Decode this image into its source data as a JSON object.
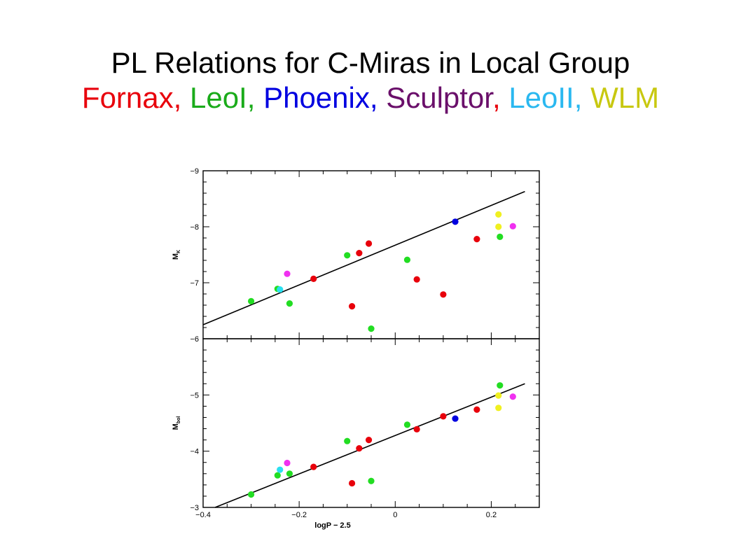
{
  "title_line1": "PL Relations for C-Miras in Local Group",
  "title_line2": [
    {
      "text": "Fornax",
      "color": "#e8000b"
    },
    {
      "text": ", ",
      "color": "#e8000b"
    },
    {
      "text": "LeoI",
      "color": "#1aab1a"
    },
    {
      "text": ", ",
      "color": "#1aab1a"
    },
    {
      "text": "Phoenix",
      "color": "#0000e0"
    },
    {
      "text": ", ",
      "color": "#0000e0"
    },
    {
      "text": "Sculptor",
      "color": "#6a0f6a"
    },
    {
      "text": ", ",
      "color": "#e8000b"
    },
    {
      "text": "LeoII",
      "color": "#2ab8f0"
    },
    {
      "text": ", ",
      "color": "#2ab8f0"
    },
    {
      "text": "WLM",
      "color": "#c8c810"
    }
  ],
  "chart_data": [
    {
      "type": "scatter",
      "panel": "top",
      "ylabel_main": "M",
      "ylabel_sub": "K",
      "xlim": [
        -0.4,
        0.3
      ],
      "ylim": [
        -6,
        -9
      ],
      "yticks": [
        -9,
        -8,
        -7,
        -6
      ],
      "ytick_labels": [
        "−9",
        "−8",
        "−7",
        "−6"
      ],
      "fit_line": {
        "x": [
          -0.4,
          0.27
        ],
        "y": [
          -6.25,
          -8.63
        ]
      },
      "points": [
        {
          "x": -0.3,
          "y": -6.67,
          "color": "#22dd22"
        },
        {
          "x": -0.245,
          "y": -6.89,
          "color": "#22dd22"
        },
        {
          "x": -0.24,
          "y": -6.88,
          "color": "#2ae0f0"
        },
        {
          "x": -0.225,
          "y": -7.16,
          "color": "#f030f0"
        },
        {
          "x": -0.22,
          "y": -6.63,
          "color": "#22dd22"
        },
        {
          "x": -0.17,
          "y": -7.07,
          "color": "#e8000b"
        },
        {
          "x": -0.1,
          "y": -7.49,
          "color": "#22dd22"
        },
        {
          "x": -0.09,
          "y": -6.58,
          "color": "#e8000b"
        },
        {
          "x": -0.075,
          "y": -7.53,
          "color": "#e8000b"
        },
        {
          "x": -0.055,
          "y": -7.7,
          "color": "#e8000b"
        },
        {
          "x": -0.05,
          "y": -6.18,
          "color": "#22dd22"
        },
        {
          "x": 0.025,
          "y": -7.41,
          "color": "#22dd22"
        },
        {
          "x": 0.045,
          "y": -7.06,
          "color": "#e8000b"
        },
        {
          "x": 0.1,
          "y": -6.79,
          "color": "#e8000b"
        },
        {
          "x": 0.125,
          "y": -8.09,
          "color": "#0000e0"
        },
        {
          "x": 0.17,
          "y": -7.78,
          "color": "#e8000b"
        },
        {
          "x": 0.215,
          "y": -8.22,
          "color": "#f0f020"
        },
        {
          "x": 0.215,
          "y": -8.0,
          "color": "#f0f020"
        },
        {
          "x": 0.218,
          "y": -7.82,
          "color": "#22dd22"
        },
        {
          "x": 0.245,
          "y": -8.01,
          "color": "#f030f0"
        }
      ]
    },
    {
      "type": "scatter",
      "panel": "bottom",
      "xlabel": "logP − 2.5",
      "ylabel_main": "M",
      "ylabel_sub": "bol",
      "xlim": [
        -0.4,
        0.3
      ],
      "ylim": [
        -3,
        -6
      ],
      "xticks": [
        -0.4,
        -0.2,
        0,
        0.2
      ],
      "xtick_labels": [
        "−0.4",
        "−0.2",
        "0",
        "0.2"
      ],
      "yticks": [
        -5,
        -4,
        -3
      ],
      "ytick_labels": [
        "−5",
        "−4",
        "−3"
      ],
      "fit_line": {
        "x": [
          -0.375,
          0.27
        ],
        "y": [
          -3.0,
          -5.2
        ]
      },
      "points": [
        {
          "x": -0.3,
          "y": -3.23,
          "color": "#22dd22"
        },
        {
          "x": -0.245,
          "y": -3.57,
          "color": "#22dd22"
        },
        {
          "x": -0.24,
          "y": -3.67,
          "color": "#2ae0f0"
        },
        {
          "x": -0.225,
          "y": -3.79,
          "color": "#f030f0"
        },
        {
          "x": -0.22,
          "y": -3.6,
          "color": "#22dd22"
        },
        {
          "x": -0.17,
          "y": -3.72,
          "color": "#e8000b"
        },
        {
          "x": -0.1,
          "y": -4.18,
          "color": "#22dd22"
        },
        {
          "x": -0.09,
          "y": -3.43,
          "color": "#e8000b"
        },
        {
          "x": -0.075,
          "y": -4.05,
          "color": "#e8000b"
        },
        {
          "x": -0.055,
          "y": -4.2,
          "color": "#e8000b"
        },
        {
          "x": -0.05,
          "y": -3.47,
          "color": "#22dd22"
        },
        {
          "x": 0.025,
          "y": -4.47,
          "color": "#22dd22"
        },
        {
          "x": 0.045,
          "y": -4.39,
          "color": "#e8000b"
        },
        {
          "x": 0.1,
          "y": -4.62,
          "color": "#e8000b"
        },
        {
          "x": 0.125,
          "y": -4.58,
          "color": "#0000e0"
        },
        {
          "x": 0.17,
          "y": -4.74,
          "color": "#e8000b"
        },
        {
          "x": 0.215,
          "y": -4.99,
          "color": "#f0f020"
        },
        {
          "x": 0.215,
          "y": -4.77,
          "color": "#f0f020"
        },
        {
          "x": 0.218,
          "y": -5.17,
          "color": "#22dd22"
        },
        {
          "x": 0.245,
          "y": -4.97,
          "color": "#f030f0"
        }
      ]
    }
  ]
}
